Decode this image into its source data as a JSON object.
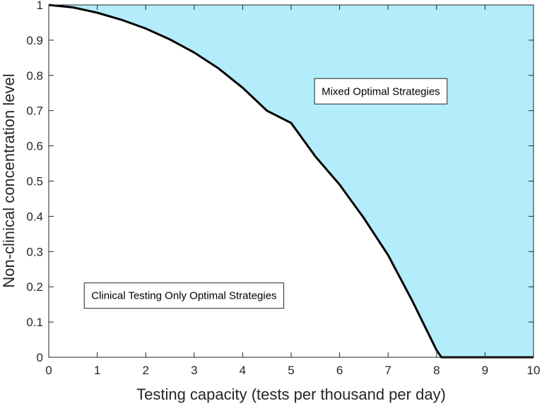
{
  "chart_data": {
    "type": "area",
    "title": "",
    "xlabel": "Testing capacity (tests per thousand per day)",
    "ylabel": "Non-clinical concentration level",
    "xlim": [
      0,
      10
    ],
    "ylim": [
      0,
      1
    ],
    "xticks": [
      "0",
      "1",
      "2",
      "3",
      "4",
      "5",
      "6",
      "7",
      "8",
      "9",
      "10"
    ],
    "yticks": [
      "0",
      "0.1",
      "0.2",
      "0.3",
      "0.4",
      "0.5",
      "0.6",
      "0.7",
      "0.8",
      "0.9",
      "1"
    ],
    "grid": false,
    "fill_color": "#b3ecfa",
    "line_color": "#000000",
    "boundary": {
      "x": [
        0,
        0.5,
        1,
        1.5,
        2,
        2.5,
        3,
        3.5,
        4,
        4.5,
        5,
        5.5,
        6,
        6.5,
        7,
        7.5,
        8,
        8.1,
        9,
        10
      ],
      "y": [
        1.0,
        0.993,
        0.978,
        0.958,
        0.933,
        0.902,
        0.865,
        0.82,
        0.765,
        0.7,
        0.665,
        0.57,
        0.49,
        0.395,
        0.29,
        0.16,
        0.02,
        0.0,
        0.0,
        0.0
      ]
    },
    "annotations": [
      {
        "text": "Mixed Optimal Strategies",
        "x": 6.85,
        "y": 0.755
      },
      {
        "text": "Clinical Testing Only Optimal Strategies",
        "x": 2.79,
        "y": 0.175
      }
    ]
  }
}
